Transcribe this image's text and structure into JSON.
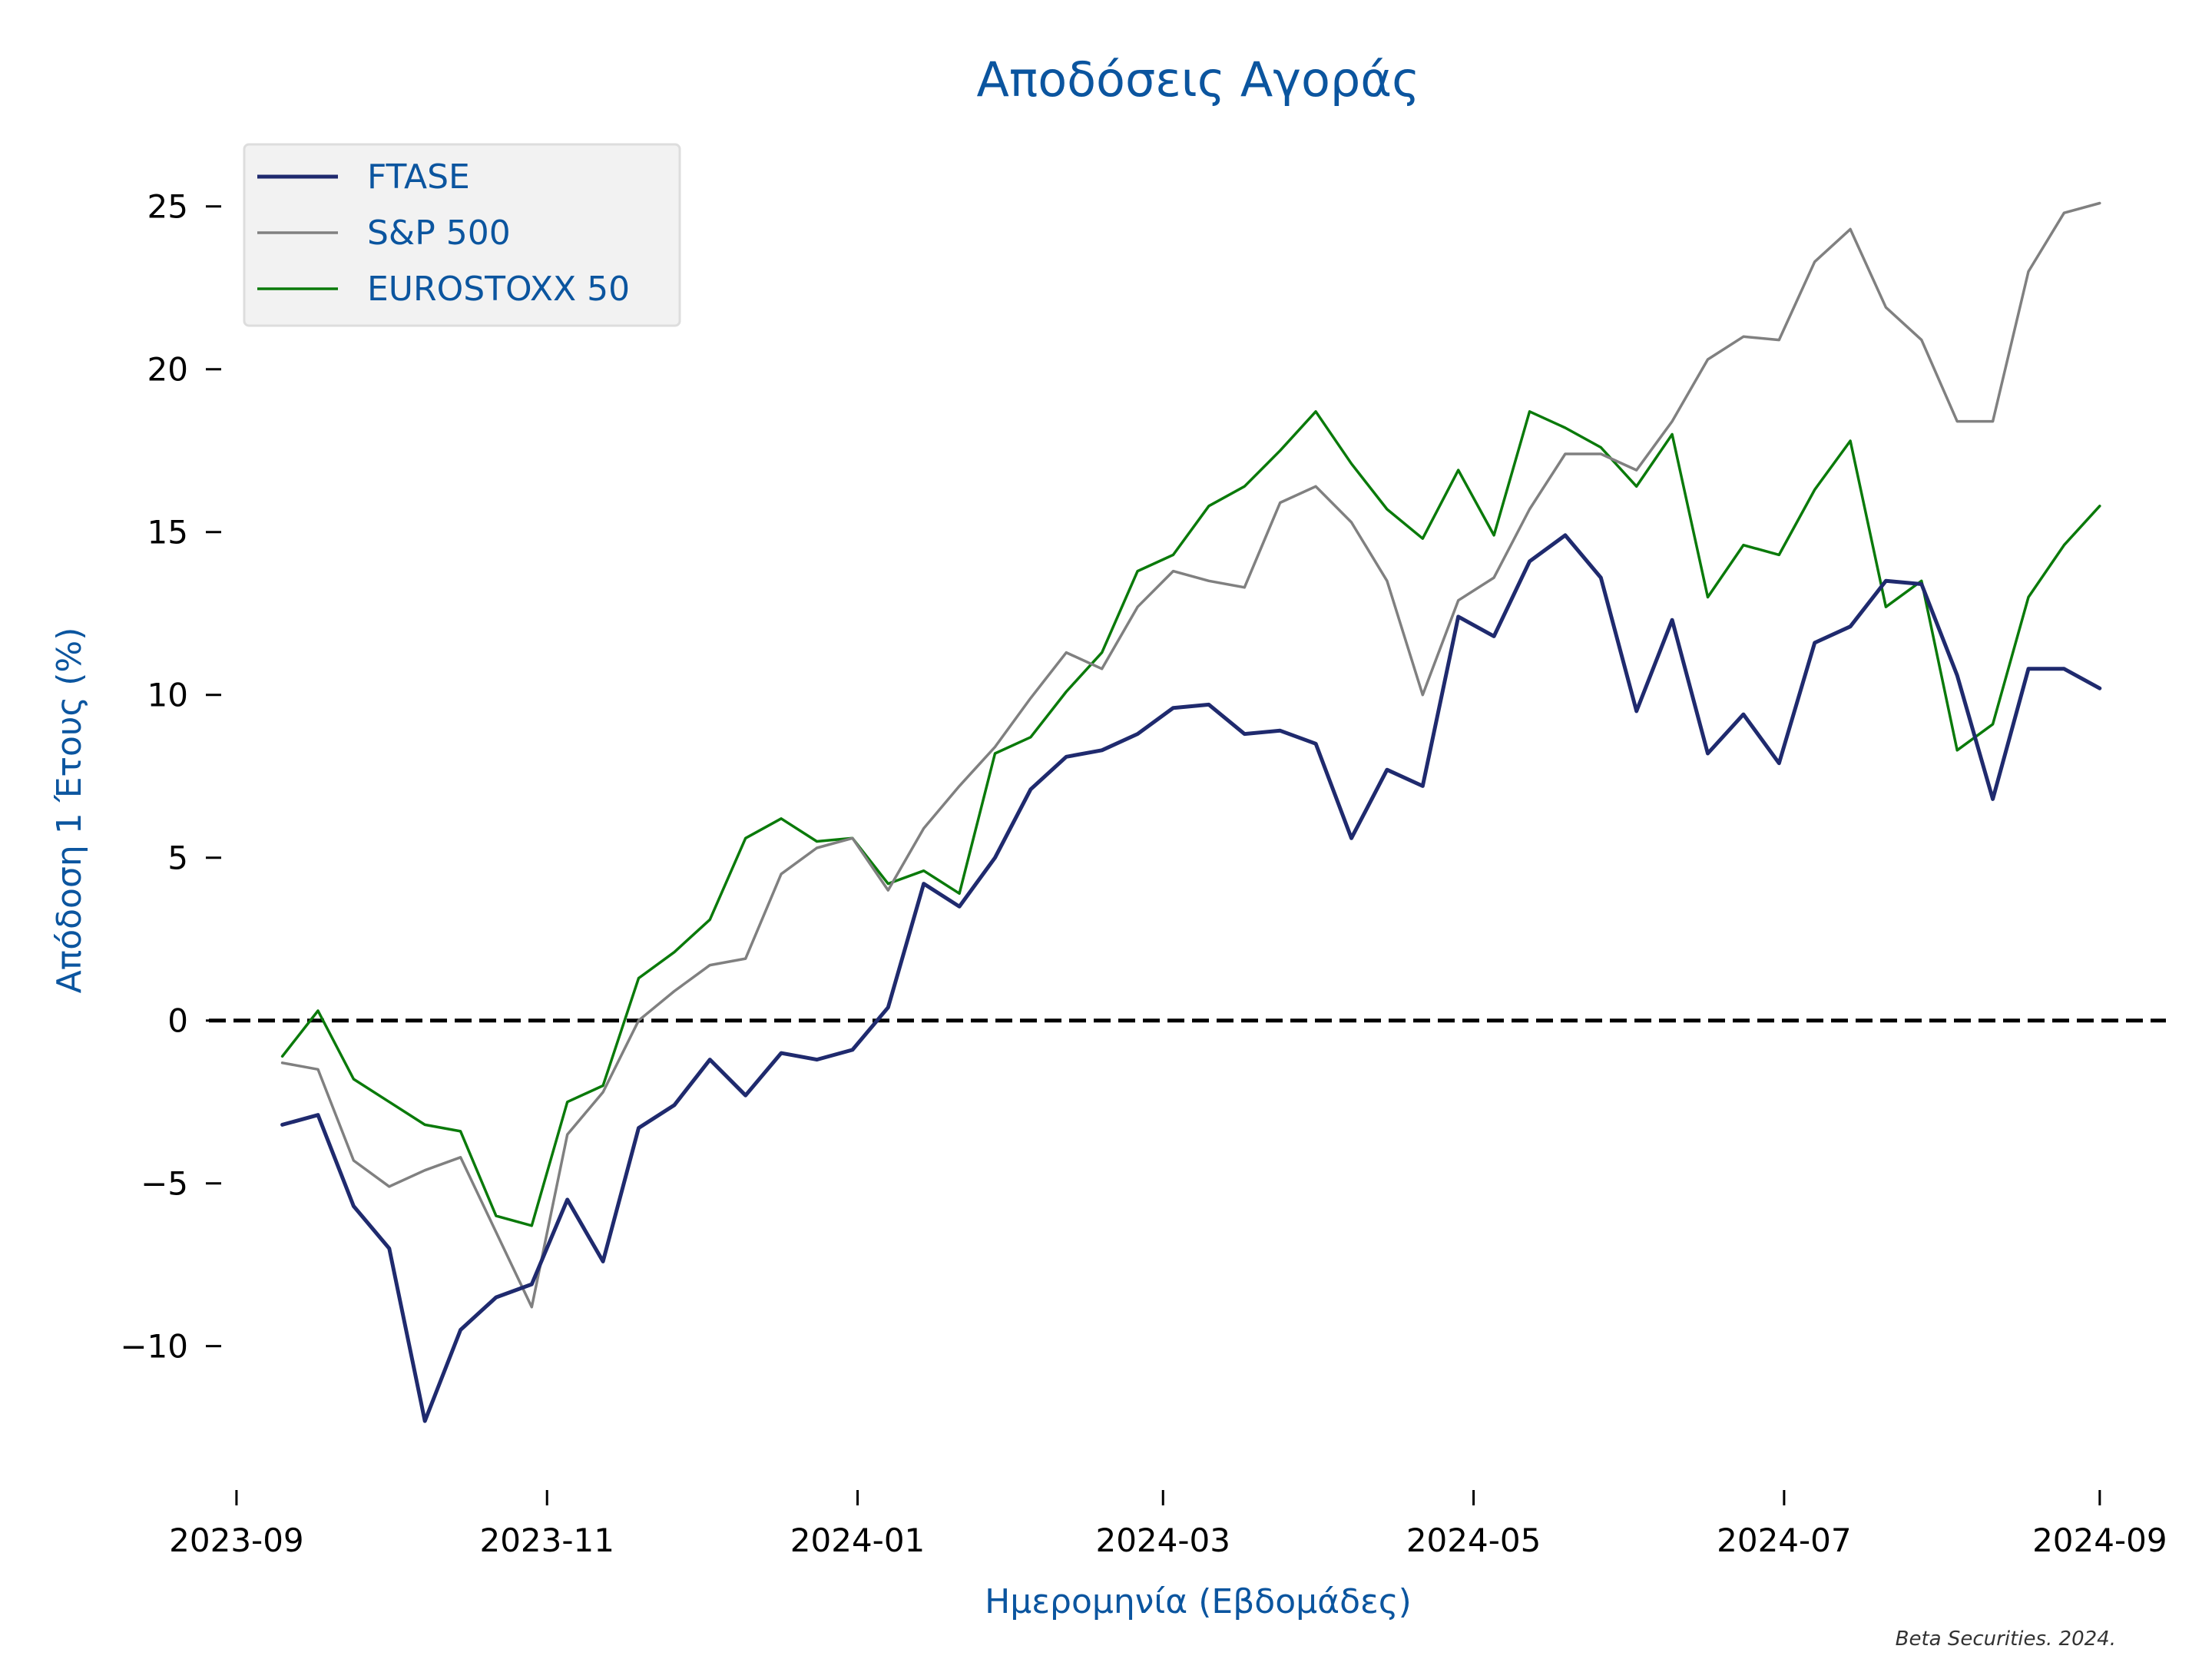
{
  "chart_data": {
    "type": "line",
    "title": "Αποδόσεις Αγοράς",
    "xlabel": "Ημερομηνία (Εβδομάδες)",
    "ylabel": "Απόδοση 1 Έτους (%)",
    "credit": "Beta Securities. 2024.",
    "ylim": [
      -14.3,
      27.8
    ],
    "xlim": [
      "2023-08-21",
      "2024-09-14"
    ],
    "x_ticks": [
      "2023-09",
      "2023-11",
      "2024-01",
      "2024-03",
      "2024-05",
      "2024-07",
      "2024-09"
    ],
    "x_tick_dates": [
      "2023-09-01",
      "2023-11-01",
      "2024-01-01",
      "2024-03-01",
      "2024-05-01",
      "2024-07-01",
      "2024-09-01"
    ],
    "y_ticks": [
      -10,
      -5,
      0,
      5,
      10,
      15,
      20,
      25
    ],
    "y_tick_labels": [
      "−10",
      "−5",
      "0",
      "5",
      "10",
      "15",
      "20",
      "25"
    ],
    "grid": false,
    "legend_position": "top-left",
    "reference_line": {
      "y": 0,
      "style": "dashed",
      "color": "#000000"
    },
    "x": [
      "2023-09-10",
      "2023-09-17",
      "2023-09-24",
      "2023-10-01",
      "2023-10-08",
      "2023-10-15",
      "2023-10-22",
      "2023-10-29",
      "2023-11-05",
      "2023-11-12",
      "2023-11-19",
      "2023-11-26",
      "2023-12-03",
      "2023-12-10",
      "2023-12-17",
      "2023-12-24",
      "2023-12-31",
      "2024-01-07",
      "2024-01-14",
      "2024-01-21",
      "2024-01-28",
      "2024-02-04",
      "2024-02-11",
      "2024-02-18",
      "2024-02-25",
      "2024-03-03",
      "2024-03-10",
      "2024-03-17",
      "2024-03-24",
      "2024-03-31",
      "2024-04-07",
      "2024-04-14",
      "2024-04-21",
      "2024-04-28",
      "2024-05-05",
      "2024-05-12",
      "2024-05-19",
      "2024-05-26",
      "2024-06-02",
      "2024-06-09",
      "2024-06-16",
      "2024-06-23",
      "2024-06-30",
      "2024-07-07",
      "2024-07-14",
      "2024-07-21",
      "2024-07-28",
      "2024-08-04",
      "2024-08-11",
      "2024-08-18",
      "2024-08-25",
      "2024-09-01"
    ],
    "series": [
      {
        "name": "FTASE",
        "color": "#1f2a6e",
        "values": [
          -3.2,
          -2.9,
          -5.7,
          -7.0,
          -12.3,
          -9.5,
          -8.5,
          -8.1,
          -5.5,
          -7.4,
          -3.3,
          -2.6,
          -1.2,
          -2.3,
          -1.0,
          -1.2,
          -0.9,
          0.4,
          4.2,
          3.5,
          5.0,
          7.1,
          8.1,
          8.3,
          8.8,
          9.6,
          9.7,
          8.8,
          8.9,
          8.5,
          5.6,
          7.7,
          7.2,
          12.4,
          11.8,
          14.1,
          14.9,
          13.6,
          9.5,
          12.3,
          8.2,
          9.4,
          7.9,
          11.6,
          12.1,
          13.5,
          13.4,
          10.6,
          6.8,
          10.8,
          10.8,
          10.2
        ]
      },
      {
        "name": "S&P 500",
        "color": "#808080",
        "values": [
          -1.3,
          -1.5,
          -4.3,
          -5.1,
          -4.6,
          -4.2,
          -6.5,
          -8.8,
          -3.5,
          -2.2,
          0.0,
          0.9,
          1.7,
          1.9,
          4.5,
          5.3,
          5.6,
          4.0,
          5.9,
          7.2,
          8.4,
          9.9,
          11.3,
          10.8,
          12.7,
          13.8,
          13.5,
          13.3,
          15.9,
          16.4,
          15.3,
          13.5,
          10.0,
          12.9,
          13.6,
          15.7,
          17.4,
          17.4,
          16.9,
          18.4,
          20.3,
          21.0,
          20.9,
          23.3,
          24.3,
          21.9,
          20.9,
          18.4,
          18.4,
          23.0,
          24.8,
          25.1
        ]
      },
      {
        "name": "EUROSTOXX 50",
        "color": "#0a7a0a",
        "values": [
          -1.1,
          0.3,
          -1.8,
          -2.5,
          -3.2,
          -3.4,
          -6.0,
          -6.3,
          -2.5,
          -2.0,
          1.3,
          2.1,
          3.1,
          5.6,
          6.2,
          5.5,
          5.6,
          4.2,
          4.6,
          3.9,
          8.2,
          8.7,
          10.1,
          11.3,
          13.8,
          14.3,
          15.8,
          16.4,
          17.5,
          18.7,
          17.1,
          15.7,
          14.8,
          16.9,
          14.9,
          18.7,
          18.2,
          17.6,
          16.4,
          18.0,
          13.0,
          14.6,
          14.3,
          16.3,
          17.8,
          12.7,
          13.5,
          8.3,
          9.1,
          13.0,
          14.6,
          15.8
        ]
      }
    ]
  }
}
